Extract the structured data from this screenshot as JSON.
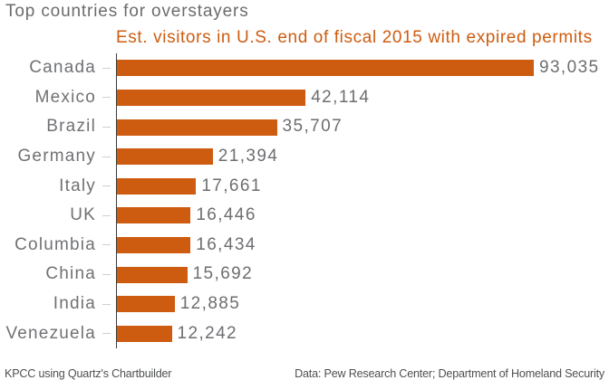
{
  "chart_data": {
    "type": "bar",
    "orientation": "horizontal",
    "title": "Top countries for overstayers",
    "legend": "Est. visitors in U.S. end of fiscal 2015 with expired permits",
    "legend_position": "top",
    "categories": [
      "Canada",
      "Mexico",
      "Brazil",
      "Germany",
      "Italy",
      "UK",
      "Columbia",
      "China",
      "India",
      "Venezuela"
    ],
    "values": [
      93035,
      42114,
      35707,
      21394,
      17661,
      16446,
      16434,
      15692,
      12885,
      12242
    ],
    "value_labels": [
      "93,035",
      "42,114",
      "35,707",
      "21,394",
      "17,661",
      "16,446",
      "16,434",
      "15,692",
      "12,885",
      "12,242"
    ],
    "xlim": [
      0,
      93035
    ],
    "grid": false,
    "xlabel": "",
    "ylabel": ""
  },
  "footer": {
    "credit": "KPCC using Quartz's Chartbuilder",
    "source": "Data: Pew Research Center; Department of Homeland Security"
  },
  "colors": {
    "bar": "#ce5c10",
    "legend_text": "#ce5c10",
    "title_text": "#6b6c6e",
    "category_text": "#707174",
    "value_text": "#6d6e71",
    "axis_line": "#3c3c3c",
    "tick": "#cfcfcf",
    "background": "#ffffff"
  }
}
